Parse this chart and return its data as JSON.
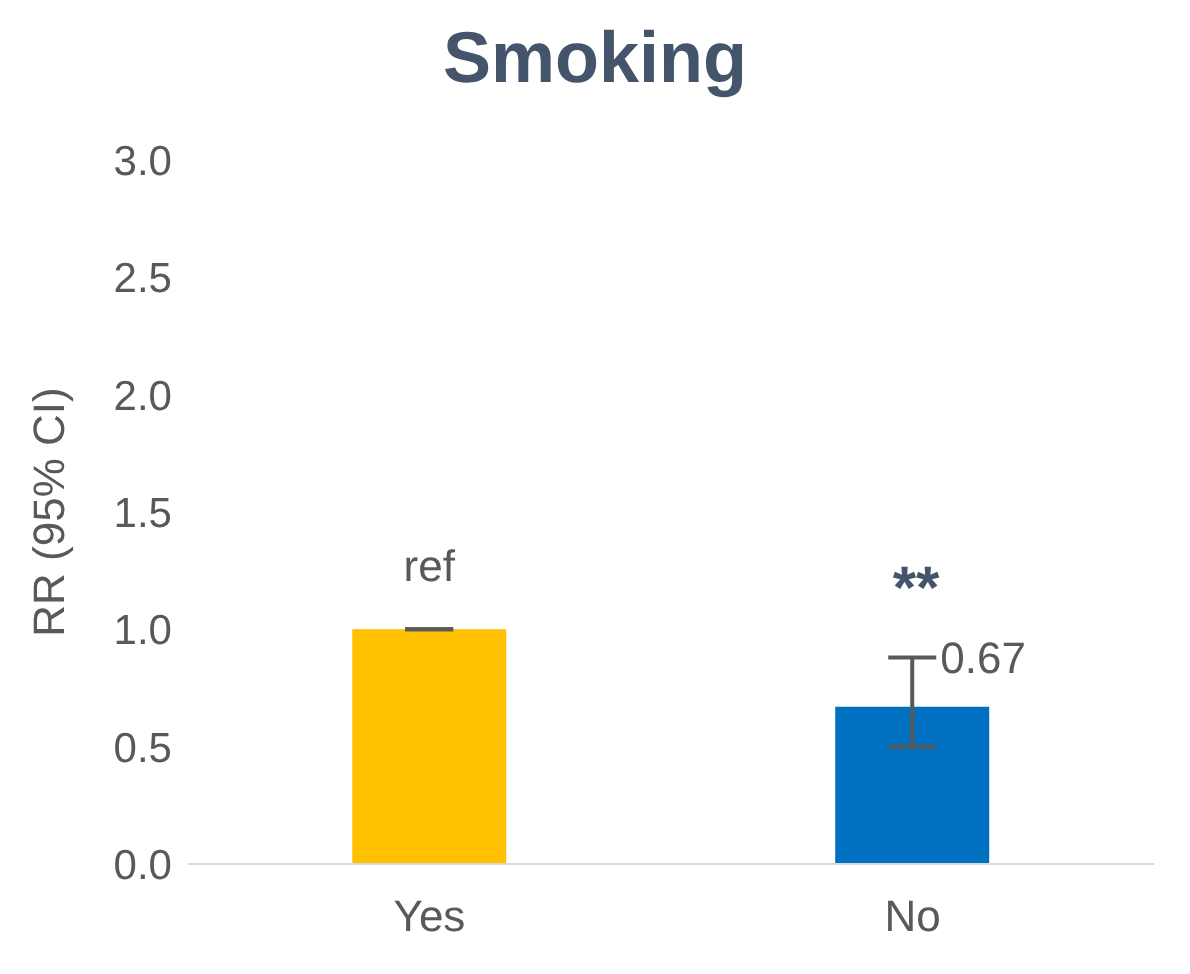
{
  "chart_data": {
    "type": "bar",
    "title": "Smoking",
    "ylabel": "RR (95% CI)",
    "categories": [
      "Yes",
      "No"
    ],
    "values": [
      1.0,
      0.67
    ],
    "colors": [
      "#ffc000",
      "#0070c0"
    ],
    "errors": [
      [
        1.0,
        1.0
      ],
      [
        0.5,
        0.88
      ]
    ],
    "value_labels": [
      "ref",
      "0.67"
    ],
    "annotations": [
      "**"
    ],
    "ylim": [
      0,
      3
    ],
    "yticks": [
      {
        "value": 0,
        "label": "0.0"
      },
      {
        "value": 0.5,
        "label": "0.5"
      },
      {
        "value": 1,
        "label": "1.0"
      },
      {
        "value": 1.5,
        "label": "1.5"
      },
      {
        "value": 2,
        "label": "2.0"
      },
      {
        "value": 2.5,
        "label": "2.5"
      },
      {
        "value": 3,
        "label": "3.0"
      }
    ],
    "grid": false,
    "legend": false
  }
}
